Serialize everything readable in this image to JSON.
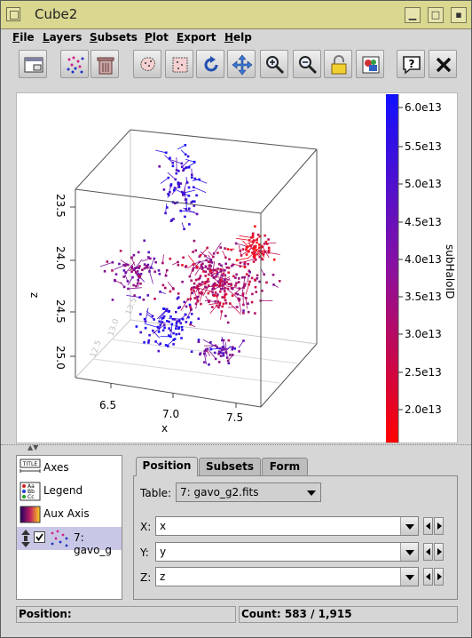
{
  "window": {
    "title": "Cube2"
  },
  "menu": [
    "File",
    "Layers",
    "Subsets",
    "Plot",
    "Export",
    "Help"
  ],
  "toolbar": [
    {
      "icon": "window-icon"
    },
    {
      "icon": "scatter-points-icon"
    },
    {
      "icon": "trash-icon"
    },
    {
      "icon": "lasso-subset-icon"
    },
    {
      "icon": "box-subset-icon"
    },
    {
      "icon": "rotate-icon"
    },
    {
      "icon": "pan-arrows-icon"
    },
    {
      "icon": "zoom-in-icon"
    },
    {
      "icon": "zoom-out-icon"
    },
    {
      "icon": "lock-icon"
    },
    {
      "icon": "export-image-icon"
    },
    {
      "icon": "help-icon"
    },
    {
      "icon": "close-icon"
    }
  ],
  "plot": {
    "x_label": "x",
    "z_label": "z",
    "x_ticks": [
      "6.5",
      "7.0",
      "7.5"
    ],
    "z_ticks": [
      "23.5",
      "24.0",
      "24.5",
      "25.0"
    ],
    "y_ticks_faint": [
      "13.5",
      "13.0",
      "12.5"
    ],
    "colorbar": {
      "label": "subHaloID",
      "ticks": [
        "6.0e13",
        "5.5e13",
        "5.0e13",
        "4.5e13",
        "4.0e13",
        "3.5e13",
        "3.0e13",
        "2.5e13",
        "2.0e13"
      ],
      "colors": {
        "top": "#1010ff",
        "bottom": "#ff0000"
      }
    }
  },
  "layers": [
    {
      "label": "Axes",
      "icon": "axes-title-icon"
    },
    {
      "label": "Legend",
      "icon": "legend-icon"
    },
    {
      "label": "Aux Axis",
      "icon": "colorramp-icon"
    },
    {
      "label": "7: gavo_g",
      "icon": "scatter-layer-icon",
      "selected": true
    }
  ],
  "controls": {
    "tabs": [
      "Position",
      "Subsets",
      "Form"
    ],
    "table_label": "Table:",
    "table_value": "7: gavo_g2.fits",
    "fields": [
      {
        "label": "X:",
        "value": "x"
      },
      {
        "label": "Y:",
        "value": "y"
      },
      {
        "label": "Z:",
        "value": "z"
      }
    ]
  },
  "status": {
    "position_label": "Position:",
    "count_text": "Count: 583 / 1,915"
  }
}
